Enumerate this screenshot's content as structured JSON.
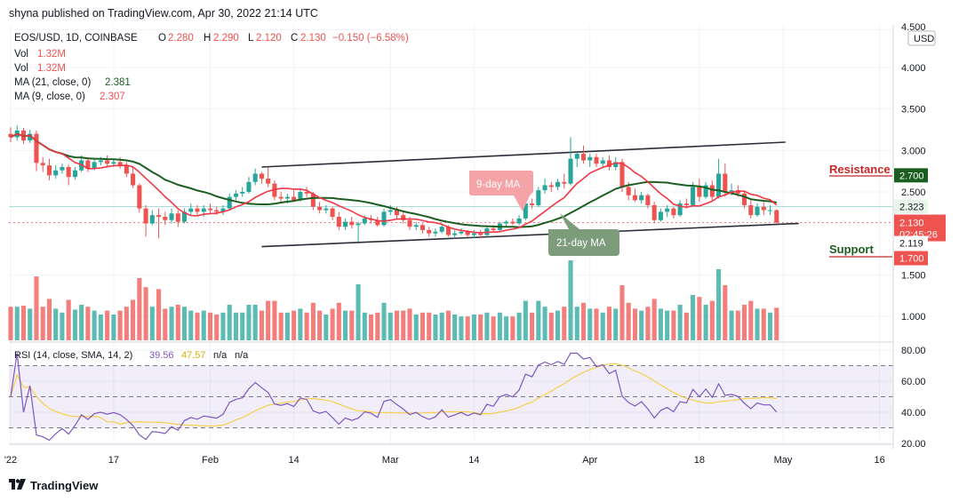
{
  "header": {
    "publisher": "shyna published on TradingView.com, Apr 30, 2022 21:14 UTC"
  },
  "legend": {
    "symbol": "EOS/USD, 1D, COINBASE",
    "open_label": "O",
    "open": "2.280",
    "high_label": "H",
    "high": "2.290",
    "low_label": "L",
    "low": "2.120",
    "close_label": "C",
    "close": "2.130",
    "change": "−0.150 (−6.58%)",
    "vol_label": "Vol",
    "vol_value": "1.32M",
    "vol2_label": "Vol",
    "vol2_value": "1.32M",
    "ma21_label": "MA (21, close, 0)",
    "ma21_value": "2.381",
    "ma9_label": "MA (9, close, 0)",
    "ma9_value": "2.307"
  },
  "rsi_legend": {
    "label": "RSI (14, close, SMA, 14, 2)",
    "rsi_value": "39.56",
    "sma_value": "47.57",
    "na1": "n/a",
    "na2": "n/a"
  },
  "price_axis": {
    "currency": "USD",
    "ticks": [
      "4.500",
      "4.000",
      "3.500",
      "3.000",
      "2.500",
      "1.500",
      "1.000"
    ],
    "top_tick": "4.500"
  },
  "rsi_axis": {
    "ticks": [
      "80.00",
      "60.00",
      "40.00",
      "20.00"
    ]
  },
  "price_tags": {
    "resistance": "2.700",
    "level_2323": "2.323",
    "last_price": "2.130",
    "countdown": "02:45:26",
    "level_2119": "2.119",
    "support": "1.700"
  },
  "time_axis": {
    "ticks": [
      "'22",
      "17",
      "Feb",
      "14",
      "Mar",
      "14",
      "Apr",
      "18",
      "May",
      "16"
    ]
  },
  "annotations": {
    "ma9": "9-day MA",
    "ma21": "21-day MA",
    "resistance": "Resistance",
    "support": "Support"
  },
  "footer": {
    "brand": "TradingView",
    "logo_icon": "tradingview-logo-icon"
  },
  "colors": {
    "bull": "#26a69a",
    "bear": "#ef5350",
    "ma9": "#f23645",
    "ma21": "#1b5e20",
    "rsi": "#7e57c2",
    "rsi_sma": "#f5d04a",
    "resistance_text": "#c62828",
    "support_text": "#1b5e20",
    "tag_red": "#ef5350",
    "tag_green": "#1b5e20"
  },
  "chart_data": {
    "type": "candlestick",
    "title": "EOS/USD, 1D, COINBASE",
    "x_tick_labels": [
      "'22",
      "17",
      "Feb",
      "14",
      "Mar",
      "14",
      "Apr",
      "18",
      "May",
      "16"
    ],
    "x_tick_dates": [
      "2022-01-01",
      "2022-01-17",
      "2022-02-01",
      "2022-02-14",
      "2022-03-01",
      "2022-03-14",
      "2022-04-01",
      "2022-04-18",
      "2022-05-01",
      "2022-05-16"
    ],
    "ylim": [
      1.5,
      4.5
    ],
    "candles": [
      {
        "d": "2022-01-01",
        "o": 3.2,
        "h": 3.28,
        "l": 3.1,
        "c": 3.16
      },
      {
        "d": "2022-01-02",
        "o": 3.16,
        "h": 3.3,
        "l": 3.12,
        "c": 3.24
      },
      {
        "d": "2022-01-03",
        "o": 3.24,
        "h": 3.27,
        "l": 3.08,
        "c": 3.12
      },
      {
        "d": "2022-01-04",
        "o": 3.12,
        "h": 3.25,
        "l": 3.09,
        "c": 3.2
      },
      {
        "d": "2022-01-05",
        "o": 3.2,
        "h": 3.24,
        "l": 2.75,
        "c": 2.85
      },
      {
        "d": "2022-01-06",
        "o": 2.85,
        "h": 2.92,
        "l": 2.74,
        "c": 2.82
      },
      {
        "d": "2022-01-07",
        "o": 2.82,
        "h": 2.9,
        "l": 2.64,
        "c": 2.7
      },
      {
        "d": "2022-01-08",
        "o": 2.7,
        "h": 2.82,
        "l": 2.66,
        "c": 2.76
      },
      {
        "d": "2022-01-09",
        "o": 2.76,
        "h": 2.84,
        "l": 2.72,
        "c": 2.8
      },
      {
        "d": "2022-01-10",
        "o": 2.8,
        "h": 2.83,
        "l": 2.58,
        "c": 2.68
      },
      {
        "d": "2022-01-11",
        "o": 2.68,
        "h": 2.8,
        "l": 2.65,
        "c": 2.76
      },
      {
        "d": "2022-01-12",
        "o": 2.76,
        "h": 2.94,
        "l": 2.74,
        "c": 2.88
      },
      {
        "d": "2022-01-13",
        "o": 2.88,
        "h": 2.92,
        "l": 2.74,
        "c": 2.78
      },
      {
        "d": "2022-01-14",
        "o": 2.78,
        "h": 2.9,
        "l": 2.76,
        "c": 2.86
      },
      {
        "d": "2022-01-15",
        "o": 2.86,
        "h": 2.92,
        "l": 2.82,
        "c": 2.88
      },
      {
        "d": "2022-01-16",
        "o": 2.88,
        "h": 2.94,
        "l": 2.8,
        "c": 2.84
      },
      {
        "d": "2022-01-17",
        "o": 2.84,
        "h": 2.9,
        "l": 2.8,
        "c": 2.86
      },
      {
        "d": "2022-01-18",
        "o": 2.86,
        "h": 2.92,
        "l": 2.78,
        "c": 2.82
      },
      {
        "d": "2022-01-19",
        "o": 2.82,
        "h": 2.86,
        "l": 2.68,
        "c": 2.72
      },
      {
        "d": "2022-01-20",
        "o": 2.72,
        "h": 2.8,
        "l": 2.55,
        "c": 2.58
      },
      {
        "d": "2022-01-21",
        "o": 2.58,
        "h": 2.6,
        "l": 2.25,
        "c": 2.3
      },
      {
        "d": "2022-01-22",
        "o": 2.3,
        "h": 2.34,
        "l": 1.96,
        "c": 2.12
      },
      {
        "d": "2022-01-23",
        "o": 2.12,
        "h": 2.28,
        "l": 2.1,
        "c": 2.22
      },
      {
        "d": "2022-01-24",
        "o": 2.22,
        "h": 2.3,
        "l": 1.94,
        "c": 2.2
      },
      {
        "d": "2022-01-25",
        "o": 2.2,
        "h": 2.26,
        "l": 2.1,
        "c": 2.16
      },
      {
        "d": "2022-01-26",
        "o": 2.16,
        "h": 2.3,
        "l": 2.12,
        "c": 2.24
      },
      {
        "d": "2022-01-27",
        "o": 2.24,
        "h": 2.28,
        "l": 2.08,
        "c": 2.14
      },
      {
        "d": "2022-01-28",
        "o": 2.14,
        "h": 2.3,
        "l": 2.12,
        "c": 2.26
      },
      {
        "d": "2022-01-29",
        "o": 2.26,
        "h": 2.36,
        "l": 2.22,
        "c": 2.3
      },
      {
        "d": "2022-01-30",
        "o": 2.3,
        "h": 2.34,
        "l": 2.22,
        "c": 2.26
      },
      {
        "d": "2022-01-31",
        "o": 2.26,
        "h": 2.34,
        "l": 2.2,
        "c": 2.3
      },
      {
        "d": "2022-02-01",
        "o": 2.3,
        "h": 2.36,
        "l": 2.24,
        "c": 2.28
      },
      {
        "d": "2022-02-02",
        "o": 2.28,
        "h": 2.32,
        "l": 2.22,
        "c": 2.26
      },
      {
        "d": "2022-02-03",
        "o": 2.26,
        "h": 2.34,
        "l": 2.22,
        "c": 2.3
      },
      {
        "d": "2022-02-04",
        "o": 2.3,
        "h": 2.48,
        "l": 2.28,
        "c": 2.44
      },
      {
        "d": "2022-02-05",
        "o": 2.44,
        "h": 2.52,
        "l": 2.4,
        "c": 2.48
      },
      {
        "d": "2022-02-06",
        "o": 2.48,
        "h": 2.56,
        "l": 2.44,
        "c": 2.5
      },
      {
        "d": "2022-02-07",
        "o": 2.5,
        "h": 2.68,
        "l": 2.48,
        "c": 2.62
      },
      {
        "d": "2022-02-08",
        "o": 2.62,
        "h": 2.78,
        "l": 2.58,
        "c": 2.72
      },
      {
        "d": "2022-02-09",
        "o": 2.72,
        "h": 2.74,
        "l": 2.6,
        "c": 2.66
      },
      {
        "d": "2022-02-10",
        "o": 2.66,
        "h": 2.8,
        "l": 2.56,
        "c": 2.6
      },
      {
        "d": "2022-02-11",
        "o": 2.6,
        "h": 2.64,
        "l": 2.4,
        "c": 2.44
      },
      {
        "d": "2022-02-12",
        "o": 2.44,
        "h": 2.5,
        "l": 2.38,
        "c": 2.42
      },
      {
        "d": "2022-02-13",
        "o": 2.42,
        "h": 2.48,
        "l": 2.36,
        "c": 2.44
      },
      {
        "d": "2022-02-14",
        "o": 2.44,
        "h": 2.52,
        "l": 2.38,
        "c": 2.4
      },
      {
        "d": "2022-02-15",
        "o": 2.4,
        "h": 2.54,
        "l": 2.38,
        "c": 2.5
      },
      {
        "d": "2022-02-16",
        "o": 2.5,
        "h": 2.56,
        "l": 2.44,
        "c": 2.48
      },
      {
        "d": "2022-02-17",
        "o": 2.48,
        "h": 2.5,
        "l": 2.28,
        "c": 2.32
      },
      {
        "d": "2022-02-18",
        "o": 2.32,
        "h": 2.38,
        "l": 2.24,
        "c": 2.28
      },
      {
        "d": "2022-02-19",
        "o": 2.28,
        "h": 2.34,
        "l": 2.24,
        "c": 2.3
      },
      {
        "d": "2022-02-20",
        "o": 2.3,
        "h": 2.32,
        "l": 2.16,
        "c": 2.2
      },
      {
        "d": "2022-02-21",
        "o": 2.2,
        "h": 2.26,
        "l": 2.04,
        "c": 2.08
      },
      {
        "d": "2022-02-22",
        "o": 2.08,
        "h": 2.18,
        "l": 2.04,
        "c": 2.14
      },
      {
        "d": "2022-02-23",
        "o": 2.14,
        "h": 2.2,
        "l": 2.06,
        "c": 2.1
      },
      {
        "d": "2022-02-24",
        "o": 2.1,
        "h": 2.14,
        "l": 1.9,
        "c": 2.12
      },
      {
        "d": "2022-02-25",
        "o": 2.12,
        "h": 2.22,
        "l": 2.1,
        "c": 2.18
      },
      {
        "d": "2022-02-26",
        "o": 2.18,
        "h": 2.22,
        "l": 2.12,
        "c": 2.16
      },
      {
        "d": "2022-02-27",
        "o": 2.16,
        "h": 2.2,
        "l": 2.08,
        "c": 2.1
      },
      {
        "d": "2022-02-28",
        "o": 2.1,
        "h": 2.3,
        "l": 2.08,
        "c": 2.26
      },
      {
        "d": "2022-03-01",
        "o": 2.26,
        "h": 2.34,
        "l": 2.22,
        "c": 2.28
      },
      {
        "d": "2022-03-02",
        "o": 2.28,
        "h": 2.32,
        "l": 2.18,
        "c": 2.22
      },
      {
        "d": "2022-03-03",
        "o": 2.22,
        "h": 2.26,
        "l": 2.12,
        "c": 2.16
      },
      {
        "d": "2022-03-04",
        "o": 2.16,
        "h": 2.2,
        "l": 2.04,
        "c": 2.08
      },
      {
        "d": "2022-03-05",
        "o": 2.08,
        "h": 2.14,
        "l": 2.04,
        "c": 2.1
      },
      {
        "d": "2022-03-06",
        "o": 2.1,
        "h": 2.12,
        "l": 2.0,
        "c": 2.04
      },
      {
        "d": "2022-03-07",
        "o": 2.04,
        "h": 2.08,
        "l": 1.96,
        "c": 2.0
      },
      {
        "d": "2022-03-08",
        "o": 2.0,
        "h": 2.06,
        "l": 1.96,
        "c": 2.02
      },
      {
        "d": "2022-03-09",
        "o": 2.02,
        "h": 2.12,
        "l": 2.0,
        "c": 2.08
      },
      {
        "d": "2022-03-10",
        "o": 2.08,
        "h": 2.1,
        "l": 1.96,
        "c": 1.98
      },
      {
        "d": "2022-03-11",
        "o": 1.98,
        "h": 2.04,
        "l": 1.94,
        "c": 2.0
      },
      {
        "d": "2022-03-12",
        "o": 2.0,
        "h": 2.06,
        "l": 1.98,
        "c": 2.02
      },
      {
        "d": "2022-03-13",
        "o": 2.02,
        "h": 2.04,
        "l": 1.96,
        "c": 1.98
      },
      {
        "d": "2022-03-14",
        "o": 1.98,
        "h": 2.04,
        "l": 1.94,
        "c": 2.0
      },
      {
        "d": "2022-03-15",
        "o": 2.0,
        "h": 2.04,
        "l": 1.94,
        "c": 1.98
      },
      {
        "d": "2022-03-16",
        "o": 1.98,
        "h": 2.08,
        "l": 1.96,
        "c": 2.06
      },
      {
        "d": "2022-03-17",
        "o": 2.06,
        "h": 2.1,
        "l": 2.02,
        "c": 2.04
      },
      {
        "d": "2022-03-18",
        "o": 2.04,
        "h": 2.14,
        "l": 2.02,
        "c": 2.12
      },
      {
        "d": "2022-03-19",
        "o": 2.12,
        "h": 2.16,
        "l": 2.08,
        "c": 2.14
      },
      {
        "d": "2022-03-20",
        "o": 2.14,
        "h": 2.18,
        "l": 2.1,
        "c": 2.12
      },
      {
        "d": "2022-03-21",
        "o": 2.12,
        "h": 2.22,
        "l": 2.1,
        "c": 2.18
      },
      {
        "d": "2022-03-22",
        "o": 2.18,
        "h": 2.4,
        "l": 2.16,
        "c": 2.36
      },
      {
        "d": "2022-03-23",
        "o": 2.36,
        "h": 2.42,
        "l": 2.3,
        "c": 2.34
      },
      {
        "d": "2022-03-24",
        "o": 2.34,
        "h": 2.56,
        "l": 2.32,
        "c": 2.52
      },
      {
        "d": "2022-03-25",
        "o": 2.52,
        "h": 2.66,
        "l": 2.48,
        "c": 2.58
      },
      {
        "d": "2022-03-26",
        "o": 2.58,
        "h": 2.62,
        "l": 2.5,
        "c": 2.56
      },
      {
        "d": "2022-03-27",
        "o": 2.56,
        "h": 2.66,
        "l": 2.52,
        "c": 2.62
      },
      {
        "d": "2022-03-28",
        "o": 2.62,
        "h": 2.72,
        "l": 2.54,
        "c": 2.6
      },
      {
        "d": "2022-03-29",
        "o": 2.6,
        "h": 3.16,
        "l": 2.58,
        "c": 2.9
      },
      {
        "d": "2022-03-30",
        "o": 2.9,
        "h": 2.98,
        "l": 2.8,
        "c": 2.96
      },
      {
        "d": "2022-03-31",
        "o": 2.96,
        "h": 3.06,
        "l": 2.84,
        "c": 2.88
      },
      {
        "d": "2022-04-01",
        "o": 2.88,
        "h": 2.96,
        "l": 2.8,
        "c": 2.92
      },
      {
        "d": "2022-04-02",
        "o": 2.92,
        "h": 2.96,
        "l": 2.8,
        "c": 2.84
      },
      {
        "d": "2022-04-03",
        "o": 2.84,
        "h": 2.92,
        "l": 2.8,
        "c": 2.88
      },
      {
        "d": "2022-04-04",
        "o": 2.88,
        "h": 2.94,
        "l": 2.76,
        "c": 2.8
      },
      {
        "d": "2022-04-05",
        "o": 2.8,
        "h": 2.92,
        "l": 2.76,
        "c": 2.86
      },
      {
        "d": "2022-04-06",
        "o": 2.86,
        "h": 2.9,
        "l": 2.5,
        "c": 2.56
      },
      {
        "d": "2022-04-07",
        "o": 2.56,
        "h": 2.62,
        "l": 2.4,
        "c": 2.46
      },
      {
        "d": "2022-04-08",
        "o": 2.46,
        "h": 2.54,
        "l": 2.38,
        "c": 2.4
      },
      {
        "d": "2022-04-09",
        "o": 2.4,
        "h": 2.5,
        "l": 2.36,
        "c": 2.46
      },
      {
        "d": "2022-04-10",
        "o": 2.46,
        "h": 2.48,
        "l": 2.3,
        "c": 2.34
      },
      {
        "d": "2022-04-11",
        "o": 2.34,
        "h": 2.38,
        "l": 2.12,
        "c": 2.16
      },
      {
        "d": "2022-04-12",
        "o": 2.16,
        "h": 2.3,
        "l": 2.14,
        "c": 2.26
      },
      {
        "d": "2022-04-13",
        "o": 2.26,
        "h": 2.34,
        "l": 2.2,
        "c": 2.3
      },
      {
        "d": "2022-04-14",
        "o": 2.3,
        "h": 2.32,
        "l": 2.18,
        "c": 2.22
      },
      {
        "d": "2022-04-15",
        "o": 2.22,
        "h": 2.4,
        "l": 2.2,
        "c": 2.36
      },
      {
        "d": "2022-04-16",
        "o": 2.36,
        "h": 2.42,
        "l": 2.3,
        "c": 2.34
      },
      {
        "d": "2022-04-17",
        "o": 2.34,
        "h": 2.62,
        "l": 2.32,
        "c": 2.56
      },
      {
        "d": "2022-04-18",
        "o": 2.56,
        "h": 2.66,
        "l": 2.38,
        "c": 2.44
      },
      {
        "d": "2022-04-19",
        "o": 2.44,
        "h": 2.62,
        "l": 2.42,
        "c": 2.58
      },
      {
        "d": "2022-04-20",
        "o": 2.58,
        "h": 2.64,
        "l": 2.4,
        "c": 2.44
      },
      {
        "d": "2022-04-21",
        "o": 2.44,
        "h": 2.9,
        "l": 2.42,
        "c": 2.72
      },
      {
        "d": "2022-04-22",
        "o": 2.72,
        "h": 2.84,
        "l": 2.44,
        "c": 2.5
      },
      {
        "d": "2022-04-23",
        "o": 2.5,
        "h": 2.6,
        "l": 2.46,
        "c": 2.52
      },
      {
        "d": "2022-04-24",
        "o": 2.52,
        "h": 2.58,
        "l": 2.44,
        "c": 2.48
      },
      {
        "d": "2022-04-25",
        "o": 2.48,
        "h": 2.5,
        "l": 2.3,
        "c": 2.34
      },
      {
        "d": "2022-04-26",
        "o": 2.34,
        "h": 2.42,
        "l": 2.18,
        "c": 2.22
      },
      {
        "d": "2022-04-27",
        "o": 2.22,
        "h": 2.36,
        "l": 2.2,
        "c": 2.32
      },
      {
        "d": "2022-04-28",
        "o": 2.32,
        "h": 2.38,
        "l": 2.22,
        "c": 2.28
      },
      {
        "d": "2022-04-29",
        "o": 2.28,
        "h": 2.34,
        "l": 2.22,
        "c": 2.28
      },
      {
        "d": "2022-04-30",
        "o": 2.28,
        "h": 2.29,
        "l": 2.12,
        "c": 2.13
      }
    ],
    "ma21_last": 2.381,
    "ma9_last": 2.307,
    "resistance": 2.7,
    "support": 1.7,
    "levels": [
      2.323,
      2.119
    ],
    "volume_ylim": [
      0.5,
      2.0
    ],
    "volume_last": "1.32M",
    "rsi": {
      "ylim": [
        20,
        80
      ],
      "bands": [
        30,
        50,
        70
      ],
      "last": 39.56,
      "sma_last": 47.57
    },
    "grid": true,
    "scale": "linear"
  }
}
